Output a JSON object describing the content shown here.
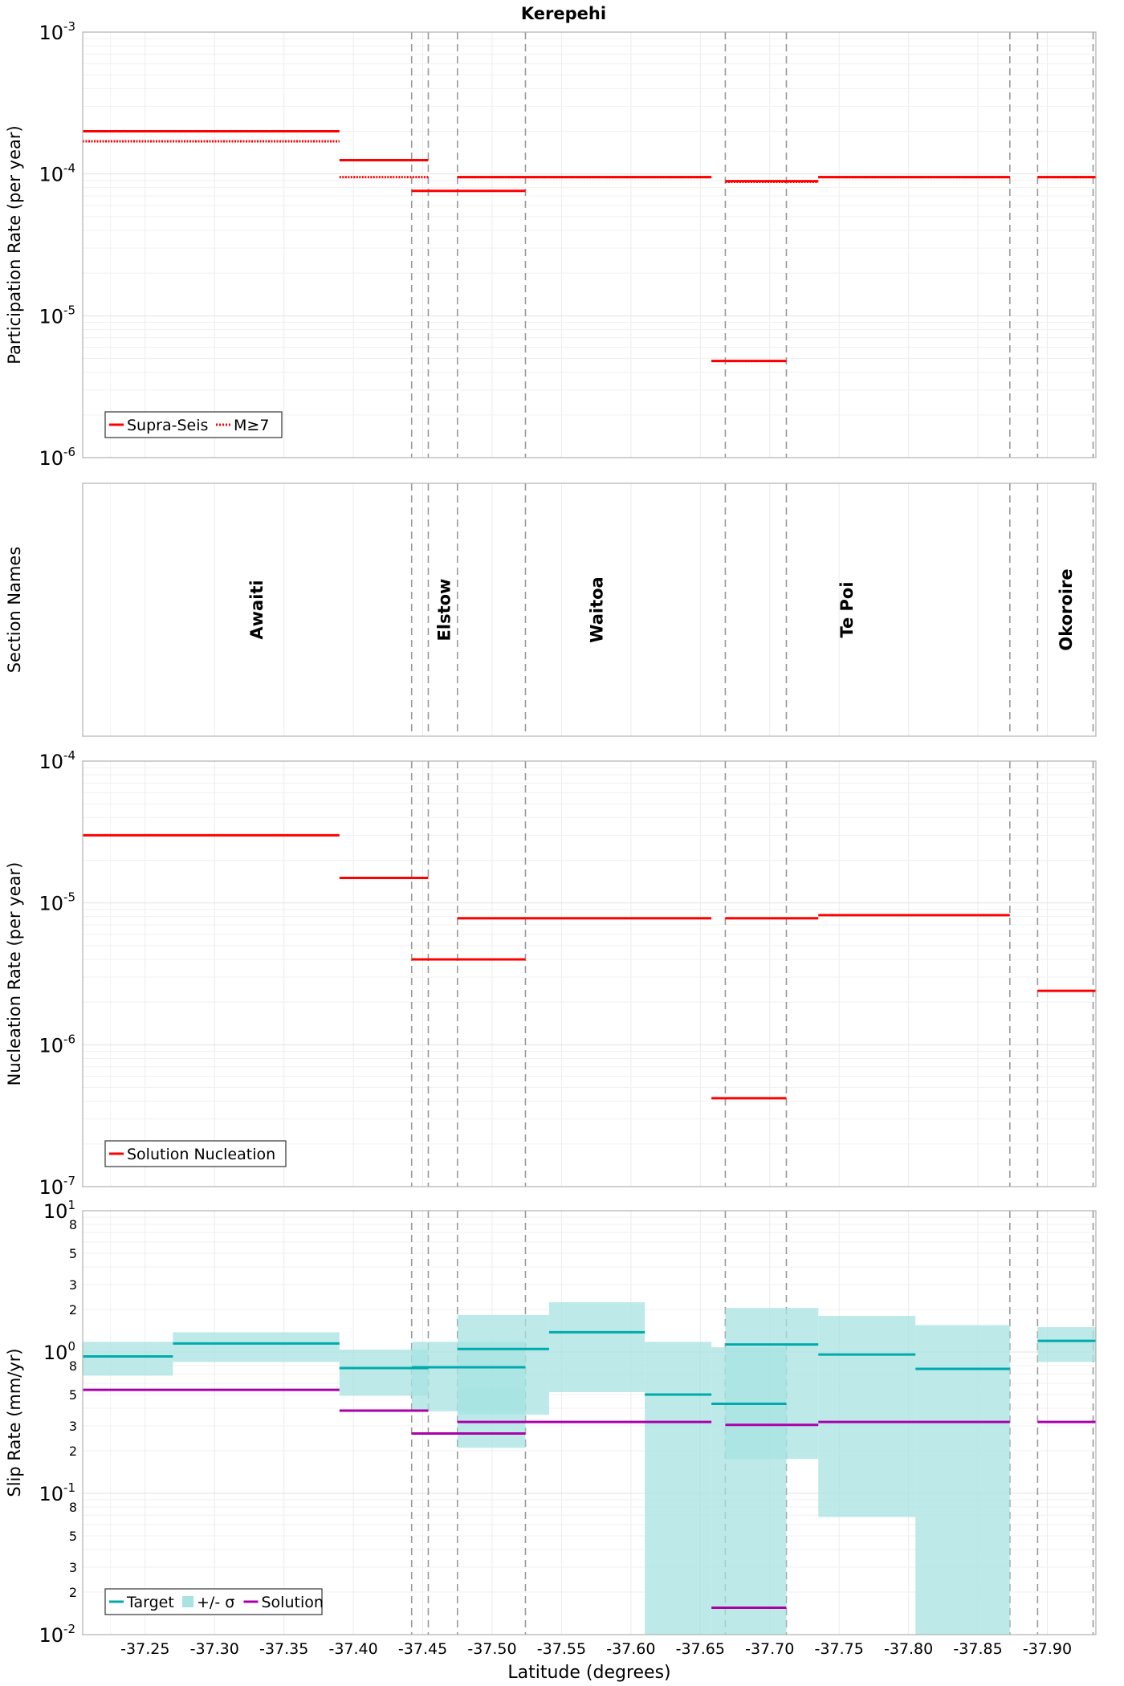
{
  "title": "Kerepehi",
  "xlabel": "Latitude (degrees)",
  "x_ticks": [
    "-37.25",
    "-37.30",
    "-37.35",
    "-37.40",
    "-37.45",
    "-37.50",
    "-37.55",
    "-37.60",
    "-37.65",
    "-37.70",
    "-37.75",
    "-37.80",
    "-37.85",
    "-37.90"
  ],
  "x_tick_values": [
    -37.25,
    -37.3,
    -37.35,
    -37.4,
    -37.45,
    -37.5,
    -37.55,
    -37.6,
    -37.65,
    -37.7,
    -37.75,
    -37.8,
    -37.85,
    -37.9
  ],
  "xlim": [
    -37.205,
    -37.935
  ],
  "section_boundaries": [
    -37.442,
    -37.454,
    -37.475,
    -37.524,
    -37.668,
    -37.712,
    -37.873,
    -37.893,
    -37.933
  ],
  "colors": {
    "red": "#ff0000",
    "teal": "#00aaaa",
    "band": "#a7e3e1",
    "magenta": "#aa00aa",
    "grid": "#ececec",
    "dash": "#999999"
  },
  "chart_data": [
    {
      "type": "line",
      "panel": "participation",
      "ylabel": "Participation Rate (per year)",
      "yscale": "log",
      "ylim": [
        1e-06,
        0.001
      ],
      "y_ticks": [
        {
          "base": "10",
          "exp": "-3"
        },
        {
          "base": "10",
          "exp": "-4"
        },
        {
          "base": "10",
          "exp": "-5"
        },
        {
          "base": "10",
          "exp": "-6"
        }
      ],
      "legend": {
        "position": "bottom-left",
        "items": [
          {
            "label": "Supra-Seis",
            "style": "solid"
          },
          {
            "label": "M≥7",
            "style": "dotted"
          }
        ]
      },
      "series": [
        {
          "name": "Supra-Seis",
          "style": "solid",
          "segments": [
            {
              "x0": -37.205,
              "x1": -37.39,
              "y": 0.0002
            },
            {
              "x0": -37.39,
              "x1": -37.454,
              "y": 0.000125
            },
            {
              "x0": -37.442,
              "x1": -37.524,
              "y": 7.6e-05
            },
            {
              "x0": -37.475,
              "x1": -37.658,
              "y": 9.5e-05
            },
            {
              "x0": -37.668,
              "x1": -37.735,
              "y": 8.9e-05
            },
            {
              "x0": -37.658,
              "x1": -37.712,
              "y": 4.8e-06
            },
            {
              "x0": -37.735,
              "x1": -37.873,
              "y": 9.5e-05
            },
            {
              "x0": -37.893,
              "x1": -37.935,
              "y": 9.5e-05
            }
          ]
        },
        {
          "name": "M≥7",
          "style": "dotted",
          "segments": [
            {
              "x0": -37.205,
              "x1": -37.39,
              "y": 0.00017
            },
            {
              "x0": -37.39,
              "x1": -37.454,
              "y": 9.5e-05
            },
            {
              "x0": -37.475,
              "x1": -37.658,
              "y": 9.5e-05
            },
            {
              "x0": -37.668,
              "x1": -37.735,
              "y": 8.8e-05
            },
            {
              "x0": -37.658,
              "x1": -37.712,
              "y": 4.8e-06
            },
            {
              "x0": -37.735,
              "x1": -37.873,
              "y": 9.5e-05
            },
            {
              "x0": -37.893,
              "x1": -37.935,
              "y": 9.5e-05
            }
          ]
        }
      ]
    },
    {
      "type": "table",
      "panel": "sections",
      "ylabel": "Section Names",
      "labels": [
        {
          "name": "Awaiti",
          "x": -37.33
        },
        {
          "name": "Elstow",
          "x": -37.465
        },
        {
          "name": "Waitoa",
          "x": -37.575
        },
        {
          "name": "Te Poi",
          "x": -37.755
        },
        {
          "name": "Okoroire",
          "x": -37.913
        }
      ]
    },
    {
      "type": "line",
      "panel": "nucleation",
      "ylabel": "Nucleation Rate (per year)",
      "yscale": "log",
      "ylim": [
        1e-07,
        0.0001
      ],
      "y_ticks": [
        {
          "base": "10",
          "exp": "-4"
        },
        {
          "base": "10",
          "exp": "-5"
        },
        {
          "base": "10",
          "exp": "-6"
        },
        {
          "base": "10",
          "exp": "-7"
        }
      ],
      "legend": {
        "position": "bottom-left",
        "items": [
          {
            "label": "Solution Nucleation",
            "style": "solid"
          }
        ]
      },
      "series": [
        {
          "name": "Solution Nucleation",
          "style": "solid",
          "segments": [
            {
              "x0": -37.205,
              "x1": -37.39,
              "y": 3e-05
            },
            {
              "x0": -37.39,
              "x1": -37.454,
              "y": 1.5e-05
            },
            {
              "x0": -37.442,
              "x1": -37.524,
              "y": 4e-06
            },
            {
              "x0": -37.475,
              "x1": -37.658,
              "y": 7.8e-06
            },
            {
              "x0": -37.668,
              "x1": -37.735,
              "y": 7.8e-06
            },
            {
              "x0": -37.658,
              "x1": -37.712,
              "y": 4.2e-07
            },
            {
              "x0": -37.735,
              "x1": -37.873,
              "y": 8.2e-06
            },
            {
              "x0": -37.893,
              "x1": -37.935,
              "y": 2.4e-06
            }
          ]
        }
      ]
    },
    {
      "type": "line",
      "panel": "slip",
      "ylabel": "Slip Rate (mm/yr)",
      "yscale": "log",
      "ylim": [
        0.01,
        10
      ],
      "y_ticks": [
        {
          "base": "10",
          "exp": "1",
          "v": 10
        },
        {
          "base": "8",
          "exp": "",
          "v": 8
        },
        {
          "base": "5",
          "exp": "",
          "v": 5
        },
        {
          "base": "3",
          "exp": "",
          "v": 3
        },
        {
          "base": "2",
          "exp": "",
          "v": 2
        },
        {
          "base": "10",
          "exp": "0",
          "v": 1
        },
        {
          "base": "8",
          "exp": "",
          "v": 0.8
        },
        {
          "base": "5",
          "exp": "",
          "v": 0.5
        },
        {
          "base": "3",
          "exp": "",
          "v": 0.3
        },
        {
          "base": "2",
          "exp": "",
          "v": 0.2
        },
        {
          "base": "10",
          "exp": "-1",
          "v": 0.1
        },
        {
          "base": "8",
          "exp": "",
          "v": 0.08
        },
        {
          "base": "5",
          "exp": "",
          "v": 0.05
        },
        {
          "base": "3",
          "exp": "",
          "v": 0.03
        },
        {
          "base": "2",
          "exp": "",
          "v": 0.02
        },
        {
          "base": "10",
          "exp": "-2",
          "v": 0.01
        }
      ],
      "legend": {
        "position": "bottom-left",
        "items": [
          {
            "label": "Target",
            "style": "solid"
          },
          {
            "label": "+/- σ",
            "style": "band"
          },
          {
            "label": "Solution",
            "style": "solid"
          }
        ]
      },
      "bands": [
        {
          "x0": -37.205,
          "x1": -37.27,
          "lo": 0.68,
          "hi": 1.18
        },
        {
          "x0": -37.27,
          "x1": -37.39,
          "lo": 0.85,
          "hi": 1.38
        },
        {
          "x0": -37.39,
          "x1": -37.454,
          "lo": 0.49,
          "hi": 1.04
        },
        {
          "x0": -37.442,
          "x1": -37.524,
          "lo": 0.38,
          "hi": 1.18
        },
        {
          "x0": -37.475,
          "x1": -37.541,
          "lo": 0.36,
          "hi": 1.83
        },
        {
          "x0": -37.475,
          "x1": -37.524,
          "lo": 0.21,
          "hi": 0.55
        },
        {
          "x0": -37.541,
          "x1": -37.61,
          "lo": 0.52,
          "hi": 2.25
        },
        {
          "x0": -37.61,
          "x1": -37.658,
          "lo": 0.01,
          "hi": 1.18
        },
        {
          "x0": -37.658,
          "x1": -37.712,
          "lo": 0.01,
          "hi": 1.08
        },
        {
          "x0": -37.668,
          "x1": -37.735,
          "lo": 0.175,
          "hi": 2.05
        },
        {
          "x0": -37.735,
          "x1": -37.805,
          "lo": 0.068,
          "hi": 1.8
        },
        {
          "x0": -37.805,
          "x1": -37.873,
          "lo": 0.01,
          "hi": 1.55
        },
        {
          "x0": -37.893,
          "x1": -37.935,
          "lo": 0.85,
          "hi": 1.5
        }
      ],
      "series": [
        {
          "name": "Target",
          "segments": [
            {
              "x0": -37.205,
              "x1": -37.27,
              "y": 0.93
            },
            {
              "x0": -37.27,
              "x1": -37.39,
              "y": 1.15
            },
            {
              "x0": -37.39,
              "x1": -37.454,
              "y": 0.77
            },
            {
              "x0": -37.442,
              "x1": -37.524,
              "y": 0.78
            },
            {
              "x0": -37.475,
              "x1": -37.541,
              "y": 1.05
            },
            {
              "x0": -37.541,
              "x1": -37.61,
              "y": 1.38
            },
            {
              "x0": -37.61,
              "x1": -37.658,
              "y": 0.5
            },
            {
              "x0": -37.658,
              "x1": -37.712,
              "y": 0.43
            },
            {
              "x0": -37.668,
              "x1": -37.735,
              "y": 1.13
            },
            {
              "x0": -37.735,
              "x1": -37.805,
              "y": 0.96
            },
            {
              "x0": -37.805,
              "x1": -37.873,
              "y": 0.76
            },
            {
              "x0": -37.893,
              "x1": -37.935,
              "y": 1.2
            }
          ]
        },
        {
          "name": "Solution",
          "segments": [
            {
              "x0": -37.205,
              "x1": -37.39,
              "y": 0.54
            },
            {
              "x0": -37.39,
              "x1": -37.454,
              "y": 0.385
            },
            {
              "x0": -37.442,
              "x1": -37.524,
              "y": 0.265
            },
            {
              "x0": -37.475,
              "x1": -37.658,
              "y": 0.32
            },
            {
              "x0": -37.668,
              "x1": -37.735,
              "y": 0.305
            },
            {
              "x0": -37.658,
              "x1": -37.712,
              "y": 0.0155
            },
            {
              "x0": -37.735,
              "x1": -37.873,
              "y": 0.32
            },
            {
              "x0": -37.893,
              "x1": -37.935,
              "y": 0.32
            }
          ]
        }
      ]
    }
  ]
}
